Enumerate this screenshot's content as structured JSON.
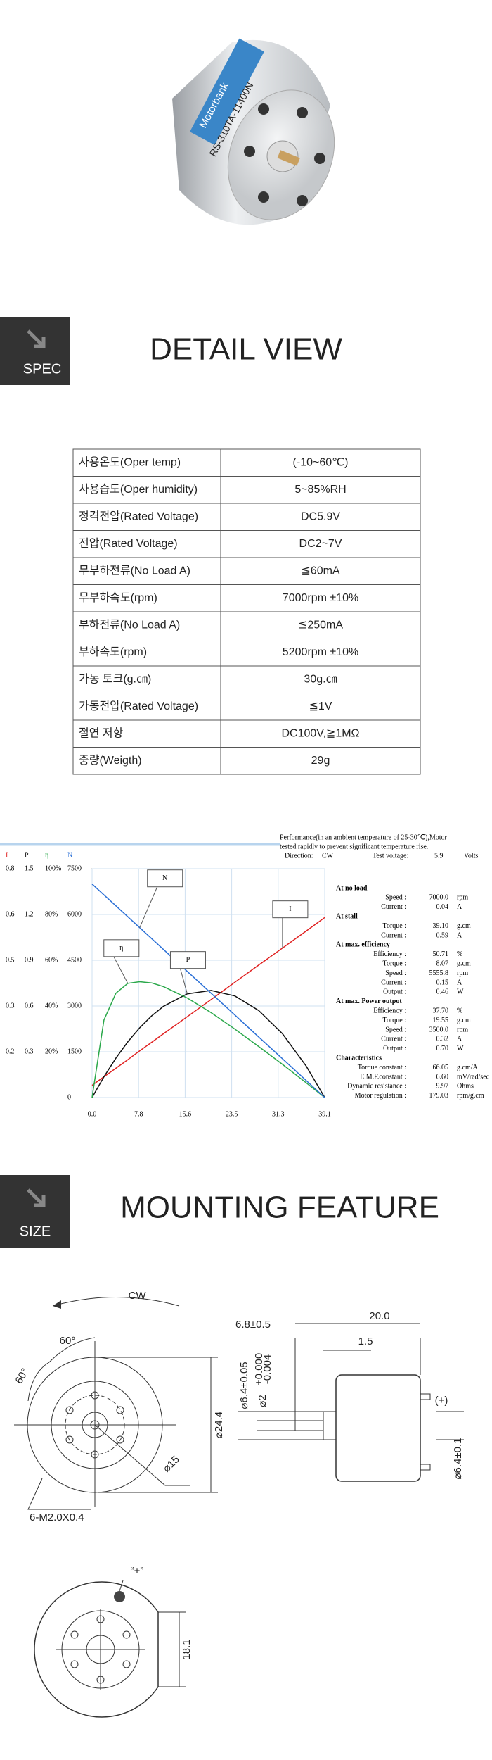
{
  "photo": {
    "brand": "Motorbank",
    "model": "RS-310TA-11400N"
  },
  "detail": {
    "badge": "SPEC",
    "title": "DETAIL VIEW"
  },
  "spec_table": {
    "rows": [
      [
        "사용온도(Oper temp)",
        "(-10~60℃)"
      ],
      [
        "사용습도(Oper humidity)",
        "5~85%RH"
      ],
      [
        "정격전압(Rated Voltage)",
        "DC5.9V"
      ],
      [
        "전압(Rated Voltage)",
        "DC2~7V"
      ],
      [
        "무부하전류(No Load A)",
        "≦60mA"
      ],
      [
        "무부하속도(rpm)",
        "7000rpm ±10%"
      ],
      [
        "부하전류(No Load A)",
        "≦250mA"
      ],
      [
        "부하속도(rpm)",
        "5200rpm ±10%"
      ],
      [
        "가동 토크(g.㎝)",
        "30g.㎝"
      ],
      [
        "가동전압(Rated Voltage)",
        "≦1V"
      ],
      [
        "절연 저항",
        "DC100V,≧1MΩ"
      ],
      [
        "중량(Weigth)",
        "29g"
      ]
    ]
  },
  "performance": {
    "note_lines": [
      "Performance(in an ambient temperature of 25-30℃),Motor",
      "tested rapidly to prevent significant temperature rise."
    ],
    "direction_label": "Direction:",
    "direction": "CW",
    "voltage_label": "Test voltage:",
    "voltage": "5.9",
    "voltage_unit": "Volts",
    "sections": [
      {
        "title": "At no load",
        "rows": [
          [
            "Speed :",
            "7000.0",
            "rpm"
          ],
          [
            "Current :",
            "0.04",
            "A"
          ]
        ]
      },
      {
        "title": "At stall",
        "rows": [
          [
            "Torque :",
            "39.10",
            "g.cm"
          ],
          [
            "Current :",
            "0.59",
            "A"
          ]
        ]
      },
      {
        "title": "At max. efficiency",
        "rows": [
          [
            "Efficiency :",
            "50.71",
            "%"
          ],
          [
            "Torque :",
            "8.07",
            "g.cm"
          ],
          [
            "Speed :",
            "5555.8",
            "rpm"
          ],
          [
            "Current :",
            "0.15",
            "A"
          ],
          [
            "Output :",
            "0.46",
            "W"
          ]
        ]
      },
      {
        "title": "At max. Power outpot",
        "rows": [
          [
            "Efficiency :",
            "37.70",
            "%"
          ],
          [
            "Torque :",
            "19.55",
            "g.cm"
          ],
          [
            "Speed :",
            "3500.0",
            "rpm"
          ],
          [
            "Current :",
            "0.32",
            "A"
          ],
          [
            "Output :",
            "0.70",
            "W"
          ]
        ]
      },
      {
        "title": "Characteristics",
        "rows": [
          [
            "Torque constant :",
            "66.05",
            "g.cm/A"
          ],
          [
            "E.M.F.constant :",
            "6.60",
            "mV/rad/sec"
          ],
          [
            "Dynamic resistance :",
            "9.97",
            "Ohms"
          ],
          [
            "Motor regulation :",
            "179.03",
            "rpm/g.cm"
          ]
        ]
      }
    ]
  },
  "chart_data": {
    "type": "line",
    "grid": true,
    "x": [
      0,
      2,
      4,
      6,
      8,
      10,
      12,
      16,
      20,
      24,
      28,
      32,
      36,
      39.1
    ],
    "xlim": [
      0,
      39.1
    ],
    "xticks": [
      {
        "value": 0,
        "label": "0.0"
      },
      {
        "value": 7.82,
        "label": "7.8"
      },
      {
        "value": 15.64,
        "label": "15.6"
      },
      {
        "value": 23.46,
        "label": "23.5"
      },
      {
        "value": 31.28,
        "label": "31.3"
      },
      39.1
    ],
    "axes": [
      {
        "ylim": [
          0,
          0.75
        ],
        "yticks": [
          {
            "value": 0.15,
            "label": "0.2"
          },
          0.3,
          {
            "value": 0.45,
            "label": "0.5"
          },
          0.6,
          {
            "value": 0.75,
            "label": "0.8"
          }
        ]
      },
      {
        "ylim": [
          0,
          1.5
        ],
        "yticks": [
          0.3,
          0.6,
          0.9,
          1.2,
          1.5
        ]
      },
      {
        "ylim": [
          0,
          100
        ],
        "yticks": [
          {
            "value": 20,
            "label": "20%"
          },
          {
            "value": 40,
            "label": "40%"
          },
          {
            "value": 60,
            "label": "60%"
          },
          {
            "value": 80,
            "label": "80%"
          },
          {
            "value": 100,
            "label": "100%"
          }
        ]
      },
      {
        "ylim": [
          0,
          7500
        ],
        "yticks": [
          0,
          1500,
          3000,
          4500,
          6000,
          7500
        ]
      }
    ],
    "series": [
      {
        "name": "I",
        "color": "#e02020",
        "axis": 0,
        "values": [
          0.04,
          0.068,
          0.096,
          0.124,
          0.153,
          0.181,
          0.209,
          0.265,
          0.321,
          0.378,
          0.434,
          0.49,
          0.546,
          0.59
        ]
      },
      {
        "name": "P",
        "color": "#111111",
        "axis": 1,
        "values": [
          0,
          0.136,
          0.258,
          0.365,
          0.457,
          0.535,
          0.598,
          0.68,
          0.702,
          0.666,
          0.571,
          0.418,
          0.205,
          0
        ]
      },
      {
        "name": "η",
        "color": "#2aa84a",
        "axis": 2,
        "values": [
          0,
          33.9,
          45.6,
          49.9,
          50.6,
          50.1,
          48.5,
          43.5,
          37.1,
          29.9,
          22.3,
          14.5,
          6.4,
          0
        ]
      },
      {
        "name": "N",
        "color": "#2a6fd6",
        "axis": 3,
        "values": [
          7000,
          6642,
          6284,
          5926,
          5568,
          5210,
          4852,
          4136,
          3420,
          2704,
          1987,
          1271,
          555,
          0
        ]
      }
    ]
  },
  "size": {
    "badge": "SIZE",
    "title": "MOUNTING FEATURE",
    "front": {
      "rotation": "CW",
      "angle_top": "60°",
      "angle_left": "60°",
      "outer": "⌀24.4",
      "pitch": "⌀15",
      "screws": "6-M2.0X0.4"
    },
    "side": {
      "shaft_len": "6.8±0.5",
      "body_len": "20.0",
      "boss": "1.5",
      "boss_dia": "⌀6.4±0.05",
      "shaft_dia": "⌀2",
      "tol_upper": "+0.000",
      "tol_lower": "-0.004",
      "terminal": "(+)",
      "end_dia": "⌀6.4±0.1"
    },
    "bottom": {
      "plus": "“+”",
      "width": "18.1"
    }
  }
}
